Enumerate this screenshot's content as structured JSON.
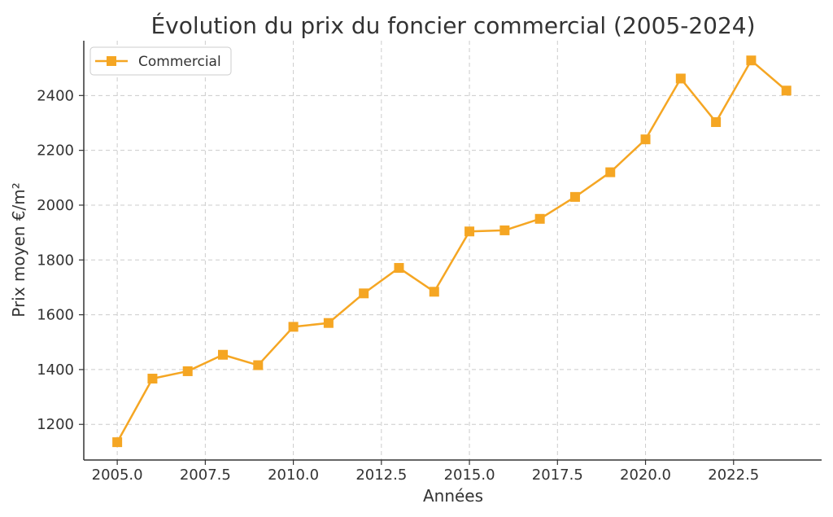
{
  "chart_data": {
    "type": "line",
    "title": "Évolution du prix du foncier commercial (2005-2024)",
    "xlabel": "Années",
    "ylabel": "Prix moyen €/m²",
    "xlim": [
      2004.05,
      2025.0
    ],
    "ylim": [
      1070,
      2600
    ],
    "x_ticks": [
      2005.0,
      2007.5,
      2010.0,
      2012.5,
      2015.0,
      2017.5,
      2020.0,
      2022.5
    ],
    "x_tick_labels": [
      "2005.0",
      "2007.5",
      "2010.0",
      "2012.5",
      "2015.0",
      "2017.5",
      "2020.0",
      "2022.5"
    ],
    "y_ticks": [
      1200,
      1400,
      1600,
      1800,
      2000,
      2200,
      2400
    ],
    "y_tick_labels": [
      "1200",
      "1400",
      "1600",
      "1800",
      "2000",
      "2200",
      "2400"
    ],
    "grid": true,
    "legend_position": "top-left",
    "series": [
      {
        "name": "Commercial",
        "color": "#f5a623",
        "marker": "square",
        "x": [
          2005,
          2006,
          2007,
          2008,
          2009,
          2010,
          2011,
          2012,
          2013,
          2014,
          2015,
          2016,
          2017,
          2018,
          2019,
          2020,
          2021,
          2022,
          2023,
          2024
        ],
        "y": [
          1135,
          1367,
          1394,
          1454,
          1416,
          1556,
          1570,
          1678,
          1771,
          1684,
          1904,
          1908,
          1950,
          2030,
          2120,
          2240,
          2462,
          2303,
          2528,
          2418
        ]
      }
    ]
  }
}
